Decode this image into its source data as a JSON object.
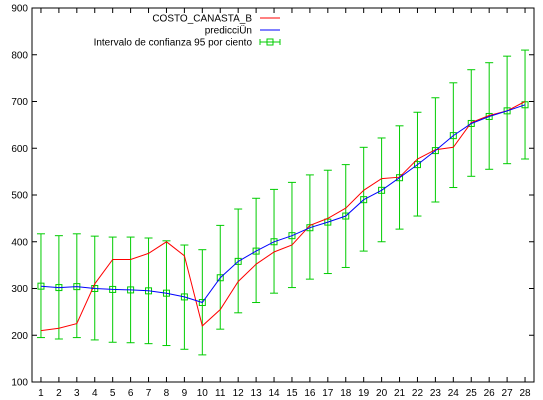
{
  "chart_data": {
    "type": "line",
    "title": "",
    "xlabel": "",
    "ylabel": "",
    "x": [
      1,
      2,
      3,
      4,
      5,
      6,
      7,
      8,
      9,
      10,
      11,
      12,
      13,
      14,
      15,
      16,
      17,
      18,
      19,
      20,
      21,
      22,
      23,
      24,
      25,
      26,
      27,
      28
    ],
    "xlim": [
      0.5,
      28.5
    ],
    "ylim": [
      100,
      900
    ],
    "yticks": [
      100,
      200,
      300,
      400,
      500,
      600,
      700,
      800,
      900
    ],
    "grid": false,
    "legend_position": "top-right",
    "series": [
      {
        "name": "COSTO_CANASTA_B",
        "color": "#ff0000",
        "style": "line",
        "values": [
          210,
          215,
          225,
          310,
          362,
          362,
          375,
          400,
          370,
          220,
          255,
          315,
          352,
          378,
          393,
          435,
          450,
          472,
          510,
          535,
          538,
          577,
          597,
          602,
          655,
          670,
          680,
          700
        ]
      },
      {
        "name": "predicciÜn",
        "color": "#0000ff",
        "style": "line",
        "values": [
          305,
          302,
          304,
          300,
          298,
          297,
          295,
          290,
          282,
          270,
          323,
          358,
          380,
          400,
          413,
          430,
          442,
          455,
          490,
          510,
          537,
          565,
          595,
          627,
          653,
          668,
          680,
          693
        ]
      },
      {
        "name": "Intervalo de confianza 95 por ciento",
        "color": "#00cc00",
        "style": "errorbar",
        "center": [
          305,
          302,
          304,
          300,
          298,
          297,
          295,
          290,
          282,
          270,
          323,
          358,
          380,
          400,
          413,
          430,
          442,
          455,
          490,
          510,
          537,
          565,
          595,
          627,
          653,
          668,
          680,
          693
        ],
        "lower": [
          195,
          192,
          195,
          190,
          185,
          184,
          182,
          178,
          170,
          158,
          213,
          248,
          270,
          290,
          302,
          320,
          332,
          345,
          380,
          400,
          427,
          455,
          485,
          516,
          540,
          555,
          567,
          577
        ],
        "upper": [
          417,
          413,
          417,
          412,
          410,
          410,
          408,
          402,
          393,
          383,
          435,
          470,
          493,
          512,
          527,
          543,
          553,
          565,
          602,
          622,
          648,
          677,
          708,
          740,
          768,
          783,
          797,
          810
        ]
      }
    ]
  }
}
